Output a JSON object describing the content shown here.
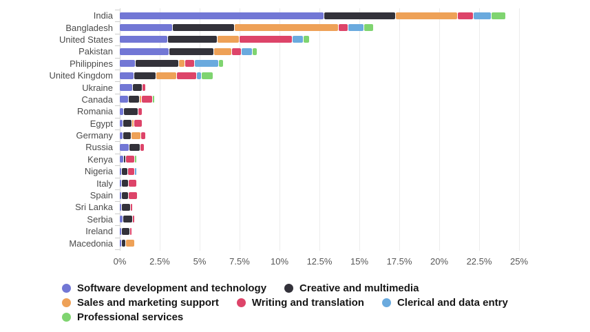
{
  "chart_data": {
    "type": "bar",
    "orientation": "horizontal",
    "stacked": true,
    "title": "",
    "xlabel": "",
    "ylabel": "",
    "xlim": [
      0,
      25
    ],
    "x_ticks": [
      "0%",
      "2.5%",
      "5%",
      "7.5%",
      "10%",
      "12.5%",
      "15%",
      "17.5%",
      "20%",
      "22.5%",
      "25%"
    ],
    "grid": true,
    "legend_position": "bottom-left",
    "categories": [
      "India",
      "Bangladesh",
      "United States",
      "Pakistan",
      "Philippines",
      "United Kingdom",
      "Ukraine",
      "Canada",
      "Romania",
      "Egypt",
      "Germany",
      "Russia",
      "Kenya",
      "Nigeria",
      "Italy",
      "Spain",
      "Sri Lanka",
      "Serbia",
      "Ireland",
      "Macedonia"
    ],
    "value_unit": "%",
    "series": [
      {
        "name": "Software development and technology",
        "color": "#7277d5",
        "values": [
          12.8,
          3.3,
          3.0,
          3.1,
          1.0,
          0.9,
          0.8,
          0.55,
          0.25,
          0.2,
          0.2,
          0.6,
          0.25,
          0.1,
          0.05,
          0.1,
          0.15,
          0.2,
          0.05,
          0.05
        ]
      },
      {
        "name": "Creative and multimedia",
        "color": "#33323a",
        "values": [
          4.5,
          3.9,
          3.1,
          2.8,
          2.7,
          1.4,
          0.6,
          0.7,
          0.9,
          0.55,
          0.5,
          0.7,
          0.15,
          0.4,
          0.45,
          0.45,
          0.55,
          0.6,
          0.5,
          0.25
        ]
      },
      {
        "name": "Sales and marketing support",
        "color": "#eea157",
        "values": [
          3.9,
          6.5,
          1.4,
          1.1,
          0.4,
          1.3,
          0,
          0.05,
          0,
          0.05,
          0.6,
          0,
          0,
          0,
          0,
          0,
          0,
          0,
          0,
          0.55
        ]
      },
      {
        "name": "Writing and translation",
        "color": "#dd4469",
        "values": [
          1.0,
          0.6,
          3.3,
          0.6,
          0.6,
          1.25,
          0.2,
          0.7,
          0.25,
          0.5,
          0.3,
          0.25,
          0.55,
          0.45,
          0.5,
          0.55,
          0.1,
          0.1,
          0.1,
          0
        ]
      },
      {
        "name": "Clerical and data entry",
        "color": "#6aaade",
        "values": [
          1.1,
          1.0,
          0.7,
          0.7,
          1.5,
          0.3,
          0,
          0,
          0,
          0,
          0,
          0,
          0,
          0.15,
          0,
          0,
          0,
          0,
          0,
          0
        ]
      },
      {
        "name": "Professional services",
        "color": "#7fd470",
        "values": [
          0.9,
          0.6,
          0.4,
          0.3,
          0.3,
          0.75,
          0,
          0.05,
          0,
          0,
          0,
          0,
          0.1,
          0,
          0,
          0,
          0,
          0,
          0,
          0
        ]
      }
    ]
  }
}
